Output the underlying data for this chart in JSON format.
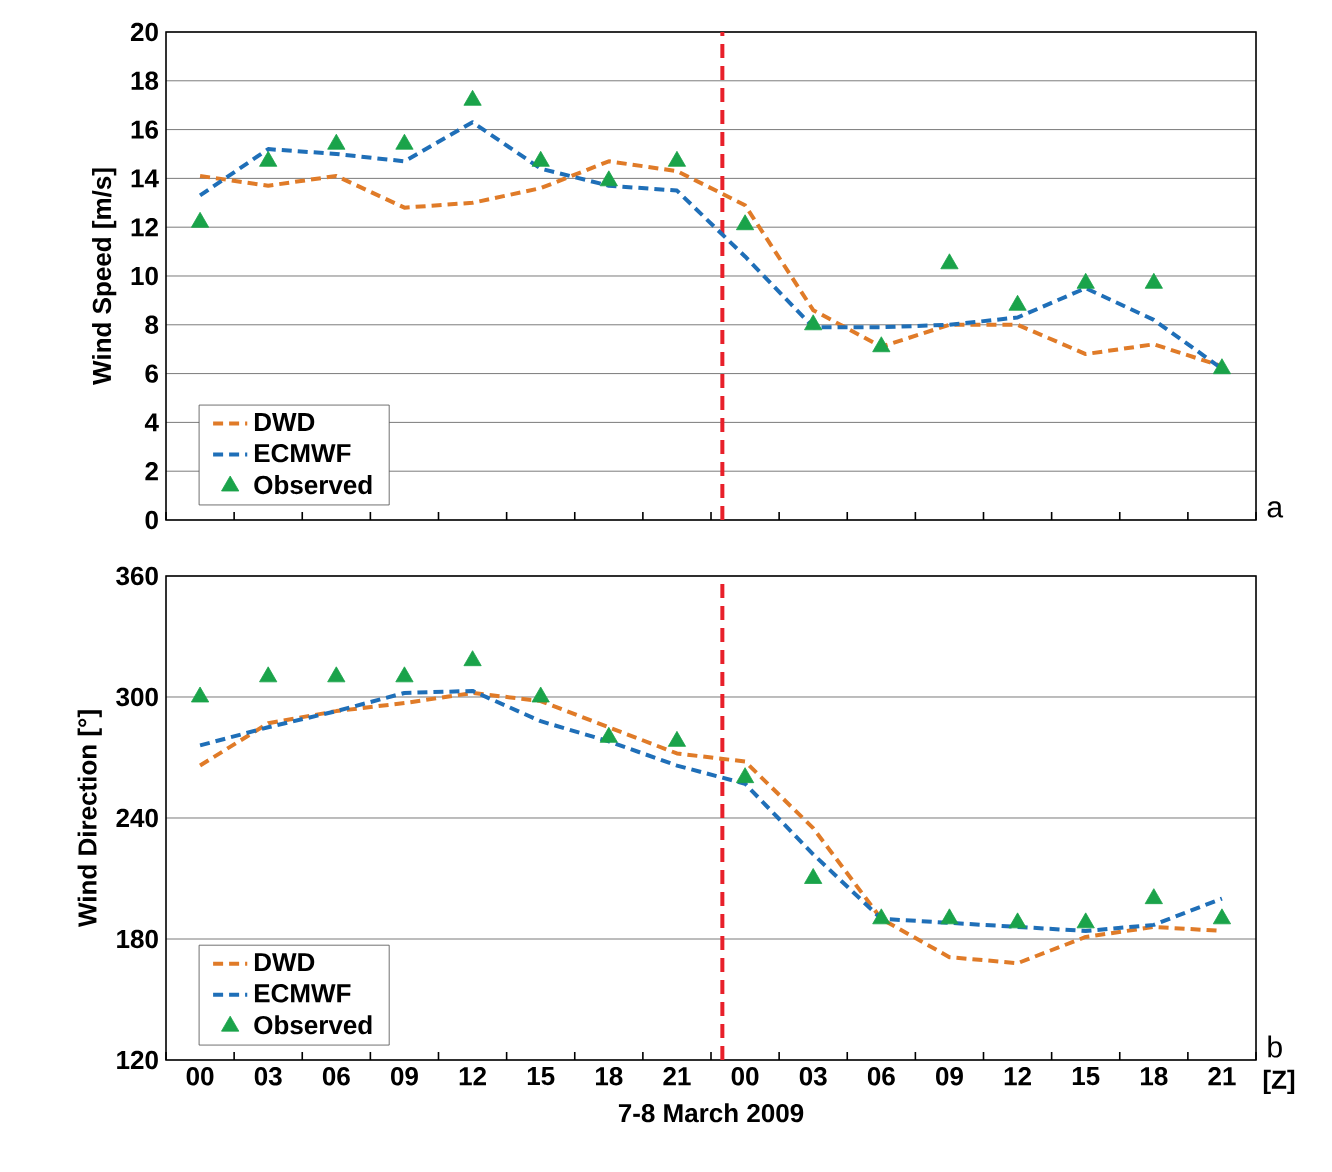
{
  "chart_data": [
    {
      "type": "line",
      "ylabel": "Wind Speed [m/s]",
      "x": [
        0,
        3,
        6,
        9,
        12,
        15,
        18,
        21,
        24,
        27,
        30,
        33,
        36,
        39,
        42,
        45
      ],
      "xlim": [
        -1.5,
        46.5
      ],
      "xticks": [
        {
          "value": 0,
          "label": null
        },
        {
          "value": 3,
          "label": null
        },
        {
          "value": 6,
          "label": null
        },
        {
          "value": 9,
          "label": null
        },
        {
          "value": 12,
          "label": null
        },
        {
          "value": 15,
          "label": null
        },
        {
          "value": 18,
          "label": null
        },
        {
          "value": 21,
          "label": null
        },
        {
          "value": 24,
          "label": null
        },
        {
          "value": 27,
          "label": null
        },
        {
          "value": 30,
          "label": null
        },
        {
          "value": 33,
          "label": null
        },
        {
          "value": 36,
          "label": null
        },
        {
          "value": 39,
          "label": null
        },
        {
          "value": 42,
          "label": null
        },
        {
          "value": 45,
          "label": null
        }
      ],
      "series": [
        {
          "name": "DWD",
          "color": "#e07b28",
          "line_style": "dashed",
          "marker": "none",
          "values": [
            14.1,
            13.7,
            14.1,
            12.8,
            13.0,
            13.6,
            14.7,
            14.3,
            12.9,
            8.6,
            7.1,
            8.0,
            8.0,
            6.8,
            7.2,
            6.3
          ]
        },
        {
          "name": "ECMWF",
          "color": "#1f6fb8",
          "line_style": "dashed",
          "marker": "none",
          "values": [
            13.3,
            15.2,
            15.0,
            14.7,
            16.3,
            14.4,
            13.7,
            13.5,
            10.8,
            7.9,
            7.9,
            8.0,
            8.3,
            9.5,
            8.2,
            6.2
          ]
        },
        {
          "name": "Observed",
          "type": "scatter",
          "color": "#1aa34a",
          "marker": "triangle",
          "values": [
            12.2,
            14.7,
            15.4,
            15.4,
            17.2,
            14.7,
            13.9,
            14.7,
            12.1,
            8.0,
            7.1,
            10.5,
            8.8,
            9.7,
            9.7,
            6.2
          ]
        }
      ],
      "ylim": [
        0,
        20
      ],
      "yticks": [
        0,
        2,
        4,
        6,
        8,
        10,
        12,
        14,
        16,
        18,
        20
      ],
      "grid": "y",
      "legend": "bottom left",
      "tick_labels": "y",
      "ref_lines": [
        {
          "axis": "x",
          "value": 23,
          "color": "#e8202a",
          "line_style": "dashed"
        }
      ],
      "annotations": [
        "a"
      ]
    },
    {
      "type": "line",
      "ylabel": "Wind Direction [°]",
      "xlabel": "7-8 March 2009",
      "x": [
        0,
        3,
        6,
        9,
        12,
        15,
        18,
        21,
        24,
        27,
        30,
        33,
        36,
        39,
        42,
        45
      ],
      "xlim": [
        -1.5,
        46.5
      ],
      "xticks": [
        {
          "value": 0,
          "label": "00"
        },
        {
          "value": 3,
          "label": "03"
        },
        {
          "value": 6,
          "label": "06"
        },
        {
          "value": 9,
          "label": "09"
        },
        {
          "value": 12,
          "label": "12"
        },
        {
          "value": 15,
          "label": "15"
        },
        {
          "value": 18,
          "label": "18"
        },
        {
          "value": 21,
          "label": "21"
        },
        {
          "value": 24,
          "label": "00"
        },
        {
          "value": 27,
          "label": "03"
        },
        {
          "value": 30,
          "label": "06"
        },
        {
          "value": 33,
          "label": "09"
        },
        {
          "value": 36,
          "label": "12"
        },
        {
          "value": 39,
          "label": "15"
        },
        {
          "value": 42,
          "label": "18"
        },
        {
          "value": 45,
          "label": "21"
        }
      ],
      "series": [
        {
          "name": "DWD",
          "color": "#e07b28",
          "line_style": "dashed",
          "marker": "none",
          "values": [
            266,
            287,
            293,
            297,
            302,
            298,
            285,
            272,
            268,
            235,
            190,
            171,
            168,
            181,
            186,
            184
          ]
        },
        {
          "name": "ECMWF",
          "color": "#1f6fb8",
          "line_style": "dashed",
          "marker": "none",
          "values": [
            276,
            285,
            293,
            302,
            303,
            288,
            278,
            266,
            257,
            222,
            190,
            188,
            186,
            184,
            187,
            200
          ]
        },
        {
          "name": "Observed",
          "type": "scatter",
          "color": "#1aa34a",
          "marker": "triangle",
          "values": [
            300,
            310,
            310,
            310,
            318,
            300,
            280,
            278,
            260,
            210,
            190,
            190,
            188,
            188,
            200,
            190
          ]
        }
      ],
      "ylim": [
        120,
        360
      ],
      "yticks": [
        120,
        180,
        240,
        300,
        360
      ],
      "grid": "y",
      "legend": "bottom left",
      "ref_lines": [
        {
          "axis": "x",
          "value": 23,
          "color": "#e8202a",
          "line_style": "dashed"
        }
      ],
      "annotations": [
        "b",
        "[Z]"
      ]
    }
  ]
}
